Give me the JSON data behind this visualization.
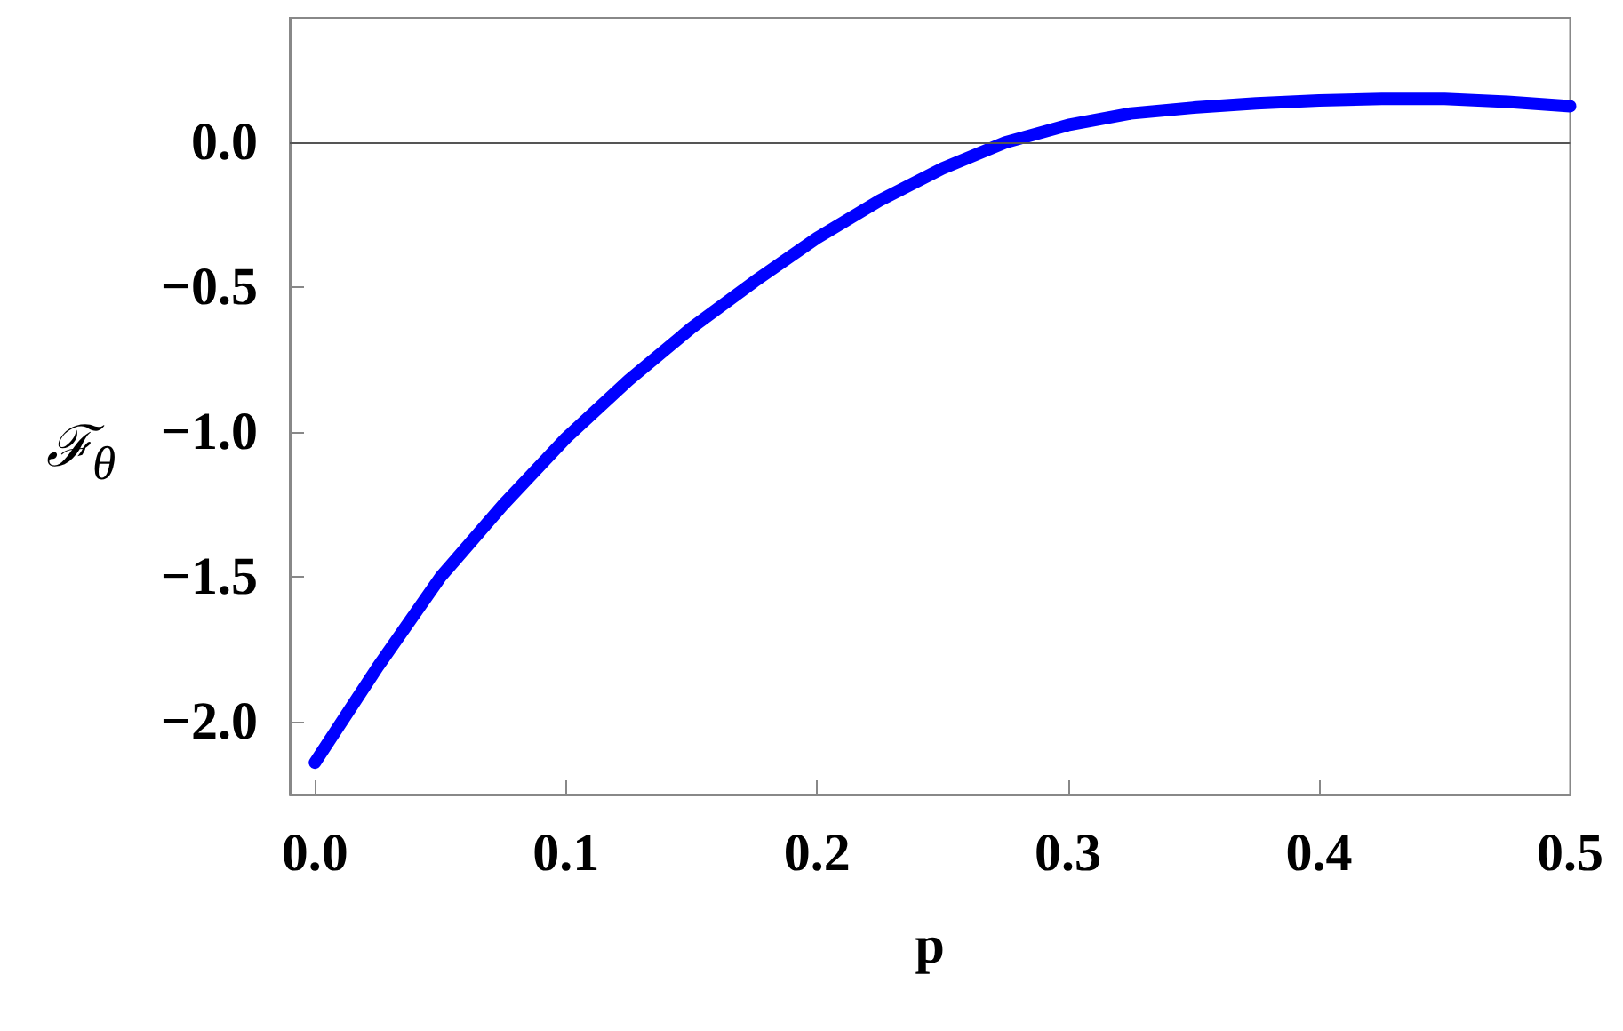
{
  "chart_data": {
    "type": "line",
    "xlabel": "p",
    "ylabel": "ℱ$_{θ}$",
    "x": [
      0,
      0.025,
      0.05,
      0.075,
      0.1,
      0.125,
      0.15,
      0.175,
      0.2,
      0.225,
      0.25,
      0.275,
      0.3,
      0.325,
      0.35,
      0.375,
      0.4,
      0.425,
      0.45,
      0.475,
      0.5
    ],
    "series": [
      {
        "color": "#0000ff",
        "values": [
          -2.14,
          -1.81,
          -1.5,
          -1.25,
          -1.02,
          -0.82,
          -0.64,
          -0.48,
          -0.33,
          -0.2,
          -0.09,
          0.0,
          0.06,
          0.1,
          0.12,
          0.135,
          0.145,
          0.15,
          0.15,
          0.14,
          0.125
        ]
      }
    ],
    "xlim": [
      -0.01,
      0.5
    ],
    "ylim": [
      -2.25,
      0.43
    ],
    "xticks": [
      {
        "value": 0,
        "label": "0.0"
      },
      {
        "value": 0.1,
        "label": "0.1"
      },
      {
        "value": 0.2,
        "label": "0.2"
      },
      {
        "value": 0.3,
        "label": "0.3"
      },
      {
        "value": 0.4,
        "label": "0.4"
      },
      {
        "value": 0.5,
        "label": "0.5"
      }
    ],
    "yticks": [
      {
        "value": -2,
        "label": "−2.0"
      },
      {
        "value": -1.5,
        "label": "−1.5"
      },
      {
        "value": -1,
        "label": "−1.0"
      },
      {
        "value": -0.5,
        "label": "−0.5"
      },
      {
        "value": 0,
        "label": "0.0"
      }
    ],
    "ref_lines": [
      {
        "axis": "y",
        "value": 0,
        "color": "#555555"
      }
    ],
    "line_style": "solid"
  }
}
